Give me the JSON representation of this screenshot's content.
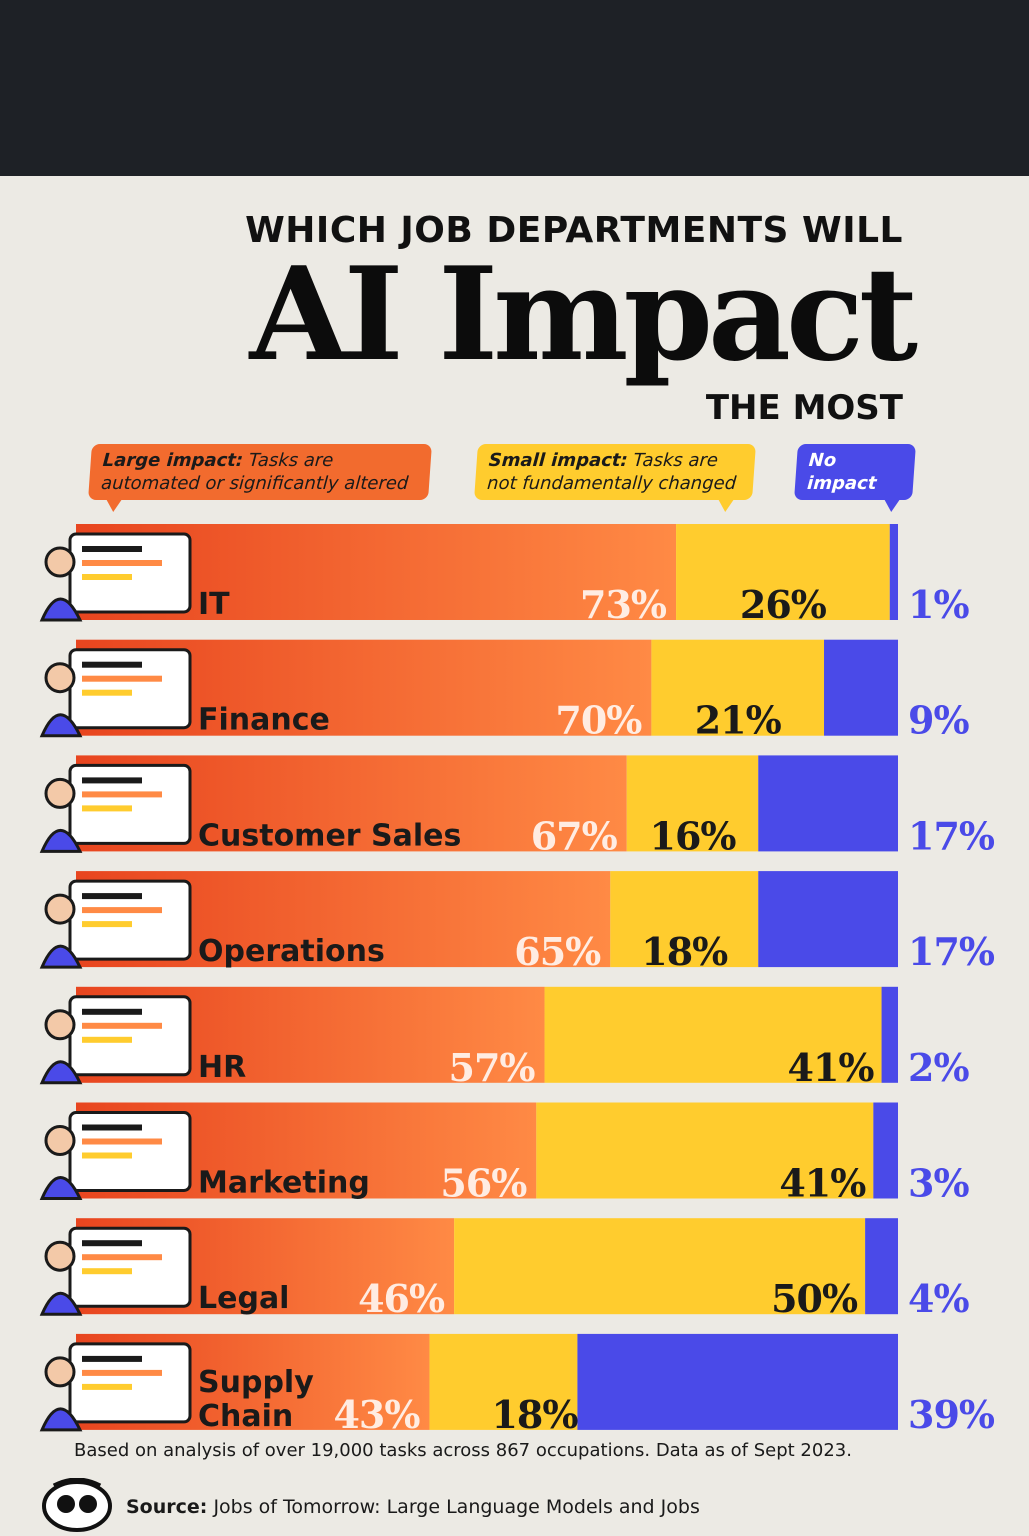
{
  "header": {
    "title_top": "WHICH JOB DEPARTMENTS WILL",
    "title_main": "AI Impact",
    "title_bottom": "THE MOST"
  },
  "legend": {
    "large": {
      "lead": "Large impact:",
      "rest": "Tasks are automated or significantly altered"
    },
    "small": {
      "lead": "Small impact:",
      "rest": "Tasks are not fundamentally changed"
    },
    "none": {
      "lead": "No impact"
    }
  },
  "colors": {
    "large_start": "#e8451f",
    "large_end": "#ff8a45",
    "small": "#ffcc2e",
    "none": "#4a4ae8",
    "background": "#eceae4"
  },
  "chart_data": {
    "type": "bar",
    "stacked": true,
    "orientation": "horizontal",
    "title": "WHICH JOB DEPARTMENTS WILL AI Impact THE MOST",
    "categories": [
      "IT",
      "Finance",
      "Customer Sales",
      "Operations",
      "HR",
      "Marketing",
      "Legal",
      "Supply Chain"
    ],
    "series": [
      {
        "name": "Large impact",
        "values": [
          73,
          70,
          67,
          65,
          57,
          56,
          46,
          43
        ],
        "labels": [
          "73%",
          "70%",
          "67%",
          "65%",
          "57%",
          "56%",
          "46%",
          "43%"
        ]
      },
      {
        "name": "Small impact",
        "values": [
          26,
          21,
          16,
          18,
          41,
          41,
          50,
          18
        ],
        "labels": [
          "26%",
          "21%",
          "16%",
          "18%",
          "41%",
          "41%",
          "50%",
          "18%"
        ]
      },
      {
        "name": "No impact",
        "values": [
          1,
          9,
          17,
          17,
          2,
          3,
          4,
          39
        ],
        "labels": [
          "1%",
          "9%",
          "17%",
          "17%",
          "2%",
          "3%",
          "4%",
          "39%"
        ]
      }
    ],
    "xlim": [
      0,
      100
    ],
    "unit": "%",
    "grid": false,
    "legend_position": "top"
  },
  "icons": [
    "it-worker-icon",
    "finance-icon",
    "customer-sales-icon",
    "operations-icon",
    "hr-icon",
    "marketing-icon",
    "legal-icon",
    "supply-chain-icon"
  ],
  "footer": {
    "note": "Based on analysis of over 19,000 tasks across 867 occupations. Data as of Sept 2023.",
    "source_label": "Source:",
    "source_text": "Jobs of Tomorrow: Large Language Models and Jobs"
  }
}
